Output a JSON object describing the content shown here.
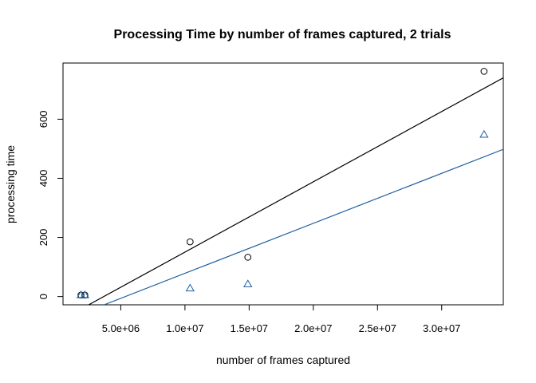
{
  "chart_data": {
    "type": "scatter",
    "title": "Processing Time by number of frames captured, 2 trials",
    "xlabel": "number of frames captured",
    "ylabel": "processing time",
    "xlim": [
      500000,
      34800000
    ],
    "ylim": [
      -28,
      790
    ],
    "xticks": [
      5000000,
      10000000,
      15000000,
      20000000,
      25000000,
      30000000
    ],
    "xtick_labels": [
      "5.0e+06",
      "1.0e+07",
      "1.5e+07",
      "2.0e+07",
      "2.5e+07",
      "3.0e+07"
    ],
    "yticks": [
      0,
      200,
      400,
      600
    ],
    "ytick_labels": [
      "0",
      "200",
      "400",
      "600"
    ],
    "grid": false,
    "series": [
      {
        "marker": "circle",
        "color": "#000000",
        "x": [
          1900000,
          2200000,
          10400000,
          14900000,
          33300000
        ],
        "y": [
          5,
          5,
          185,
          133,
          762
        ],
        "fit_line": {
          "x": [
            2500000,
            34800000
          ],
          "y": [
            -28,
            740
          ]
        }
      },
      {
        "marker": "triangle",
        "color": "#1f5fa0",
        "x": [
          1900000,
          2200000,
          10400000,
          14900000,
          33300000
        ],
        "y": [
          5,
          5,
          28,
          42,
          548
        ],
        "fit_line": {
          "x": [
            3700000,
            34800000
          ],
          "y": [
            -28,
            498
          ]
        }
      }
    ]
  }
}
